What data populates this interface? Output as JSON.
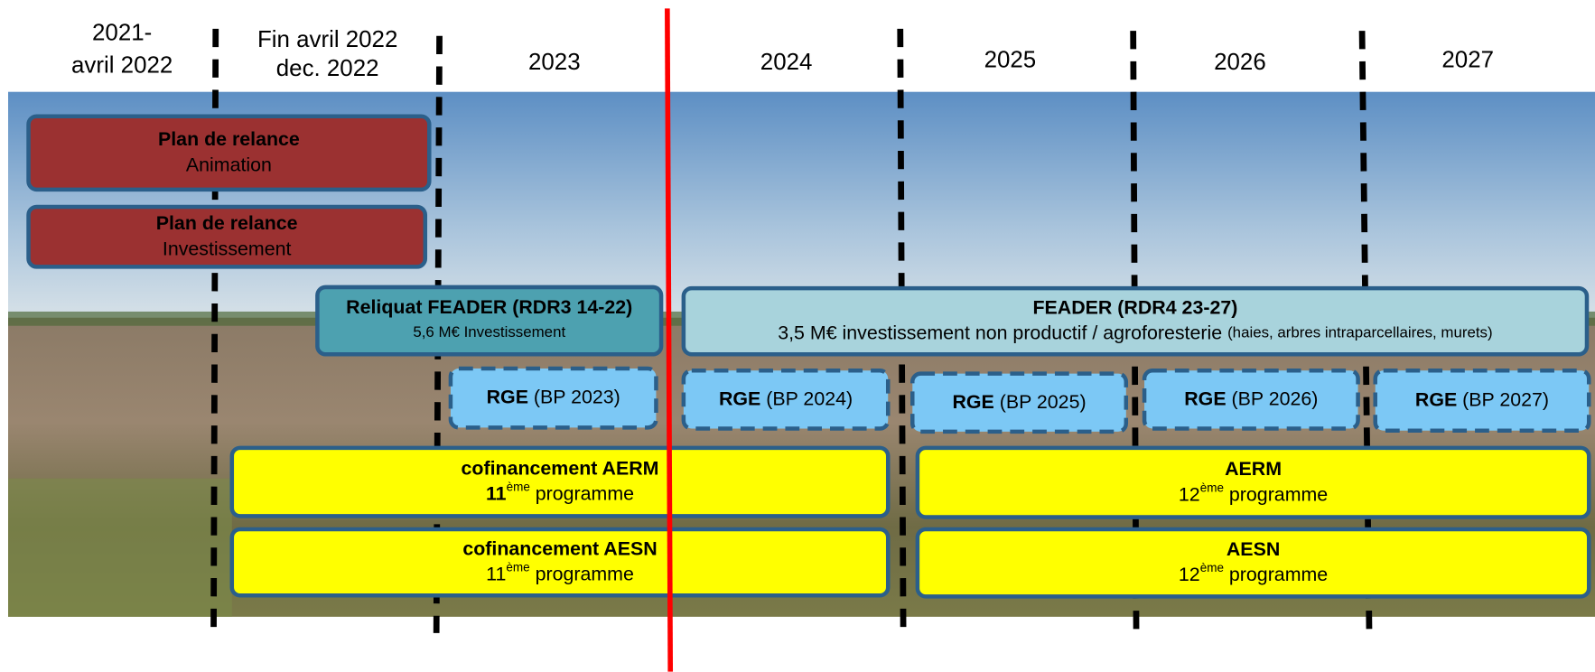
{
  "columns": [
    [
      "2021-",
      "avril 2022"
    ],
    [
      "Fin avril 2022",
      "dec. 2022"
    ],
    [
      "2023"
    ],
    [
      "2024"
    ],
    [
      "2025"
    ],
    [
      "2026"
    ],
    [
      "2027"
    ]
  ],
  "boxes": [
    {
      "lines": [
        [
          {
            "text": "Plan de relance",
            "bold": true
          }
        ],
        [
          {
            "text": "Animation"
          }
        ]
      ]
    },
    {
      "lines": [
        [
          {
            "text": "Plan de relance",
            "bold": true
          }
        ],
        [
          {
            "text": "Investissement"
          }
        ]
      ]
    },
    {
      "lines": [
        [
          {
            "text": "Reliquat FEADER (RDR3 14-22)",
            "bold": true
          }
        ],
        [
          {
            "text": "5,6 M€ Investissement",
            "small": true
          }
        ]
      ]
    },
    {
      "lines": [
        [
          {
            "text": "FEADER (RDR4 23-27)",
            "bold": true
          }
        ],
        [
          {
            "text": "3,5 M€ investissement non productif / agroforesterie "
          },
          {
            "text": "(haies, arbres intraparcellaires, murets)",
            "small": true
          }
        ]
      ]
    },
    {
      "lines": [
        [
          {
            "text": "RGE",
            "bold": true
          },
          {
            "text": " (BP 2023)"
          }
        ]
      ]
    },
    {
      "lines": [
        [
          {
            "text": "RGE",
            "bold": true
          },
          {
            "text": " (BP 2024)"
          }
        ]
      ]
    },
    {
      "lines": [
        [
          {
            "text": "RGE",
            "bold": true
          },
          {
            "text": " (BP 2025)"
          }
        ]
      ]
    },
    {
      "lines": [
        [
          {
            "text": "RGE",
            "bold": true
          },
          {
            "text": " (BP 2026)"
          }
        ]
      ]
    },
    {
      "lines": [
        [
          {
            "text": "RGE",
            "bold": true
          },
          {
            "text": " (BP 2027)"
          }
        ]
      ]
    },
    {
      "lines": [
        [
          {
            "text": "cofinancement AERM",
            "bold": true
          }
        ],
        [
          {
            "text": "11",
            "bold": true
          },
          {
            "text": "ème",
            "sup": true
          },
          {
            "text": " programme"
          }
        ]
      ]
    },
    {
      "lines": [
        [
          {
            "text": "AERM",
            "bold": true
          }
        ],
        [
          {
            "text": "12"
          },
          {
            "text": "ème",
            "sup": true
          },
          {
            "text": " programme"
          }
        ]
      ]
    },
    {
      "lines": [
        [
          {
            "text": "cofinancement AESN",
            "bold": true
          }
        ],
        [
          {
            "text": "11"
          },
          {
            "text": "ème",
            "sup": true
          },
          {
            "text": " programme"
          }
        ]
      ]
    },
    {
      "lines": [
        [
          {
            "text": "AESN",
            "bold": true
          }
        ],
        [
          {
            "text": "12"
          },
          {
            "text": "ème",
            "sup": true
          },
          {
            "text": " programme"
          }
        ]
      ]
    }
  ]
}
